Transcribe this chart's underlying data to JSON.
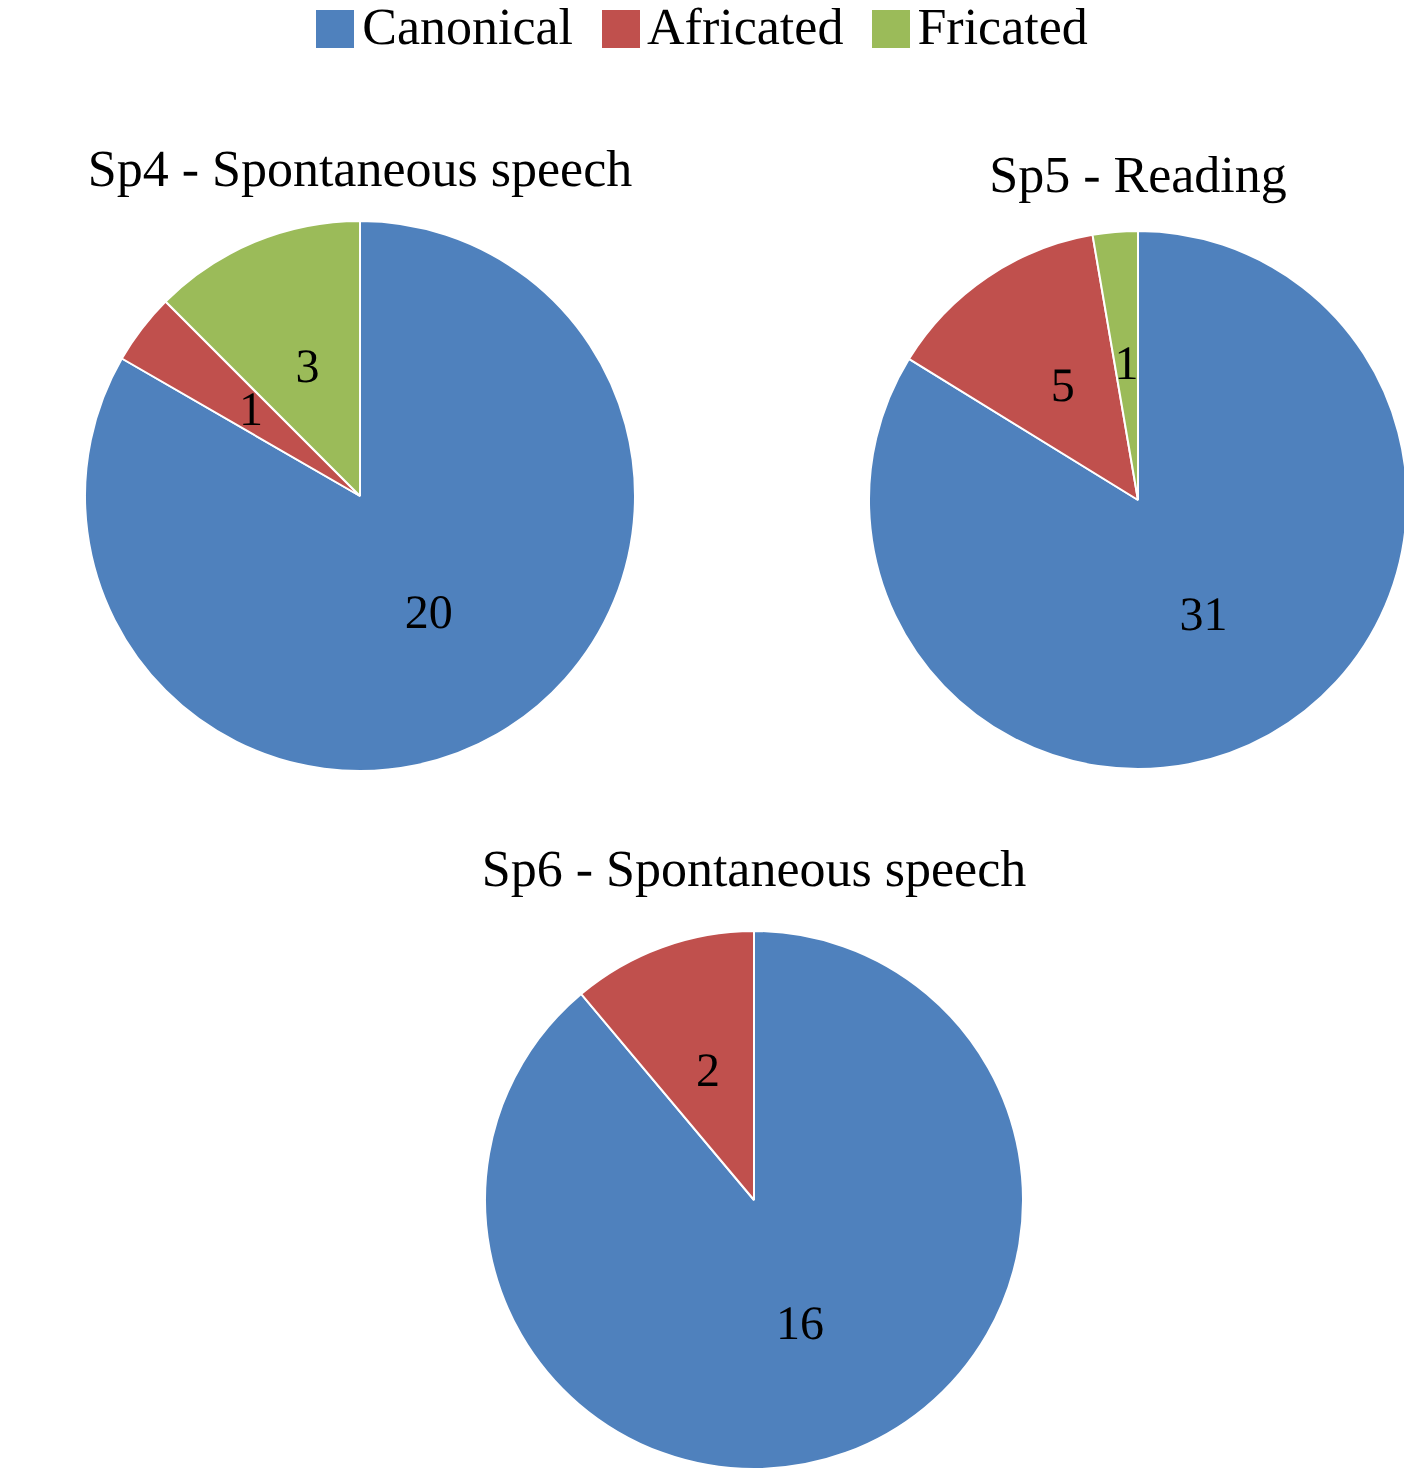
{
  "chart_data": [
    {
      "type": "pie",
      "title": "Sp4 - Spontaneous speech",
      "categories": [
        "Canonical",
        "Africated",
        "Fricated"
      ],
      "values": [
        20,
        1,
        3
      ],
      "colors": [
        "#4f81bd",
        "#c0504d",
        "#9bbb59"
      ],
      "data_labels": true,
      "legend": "top"
    },
    {
      "type": "pie",
      "title": "Sp5 - Reading",
      "categories": [
        null,
        null,
        null
      ],
      "values": [
        31,
        5,
        1
      ],
      "colors": [
        "#4f81bd",
        "#c0504d",
        "#9bbb59"
      ],
      "data_labels": true
    },
    {
      "type": "pie",
      "title": "Sp6 - Spontaneous speech",
      "categories": [
        null,
        null
      ],
      "values": [
        16,
        2
      ],
      "colors": [
        "#4f81bd",
        "#c0504d"
      ],
      "data_labels": true
    }
  ]
}
